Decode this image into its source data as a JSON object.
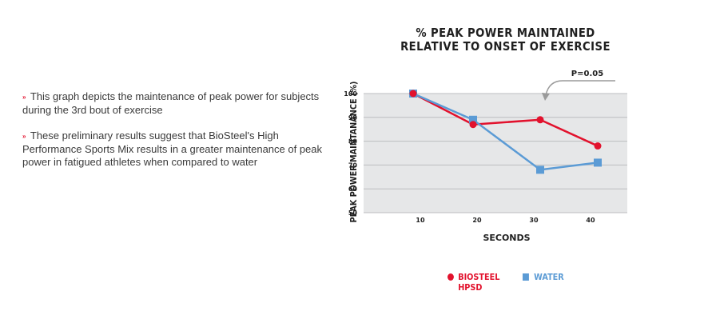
{
  "bullets": [
    {
      "marker": "»",
      "text": "This graph depicts the maintenance of peak power for subjects during the 3rd bout of exercise"
    },
    {
      "marker": "»",
      "text": "These preliminary results suggest that BioSteel's High Performance Sports Mix results in a greater maintenance of peak power in fatigued athletes when compared to water"
    }
  ],
  "chart_data": {
    "type": "line",
    "title_line1": "% PEAK POWER MAINTAINED",
    "title_line2": "RELATIVE TO ONSET OF EXERCISE",
    "xlabel": "SECONDS",
    "ylabel": "PEAK POWER MAINTANANCE (%)",
    "x": [
      10,
      20,
      30,
      40
    ],
    "x_tick_labels": [
      "10",
      "20",
      "30",
      "40"
    ],
    "y_tick_labels": [
      "50",
      "60",
      "70",
      "80",
      "90",
      "100"
    ],
    "ylim": [
      50,
      100
    ],
    "grid": true,
    "annotation": "P=0.05",
    "series": [
      {
        "name": "BIOSTEEL HPSD",
        "legend_line1": "BIOSTEEL",
        "legend_line2": "HPSD",
        "values": [
          100,
          87,
          89,
          78
        ],
        "color": "#e2122d",
        "marker": "circle"
      },
      {
        "name": "WATER",
        "legend_line1": "WATER",
        "values": [
          100,
          89,
          68,
          71
        ],
        "color": "#5b9bd5",
        "marker": "square"
      }
    ],
    "legend_position": "bottom"
  }
}
